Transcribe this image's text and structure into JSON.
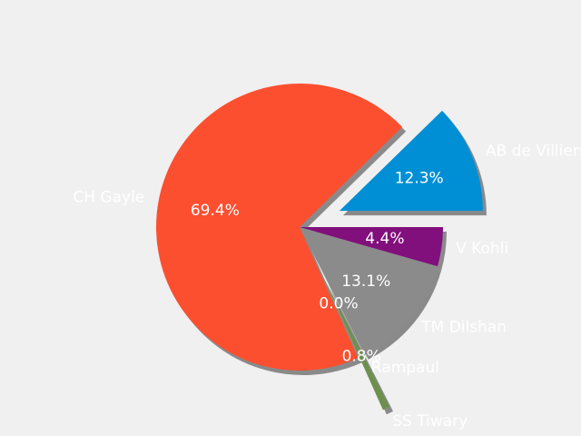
{
  "chart_data": {
    "type": "pie",
    "categories": [
      "AB de Villiers",
      "CH Gayle",
      "SS Tiwary",
      "Rampaul",
      "TM Dilshan",
      "V Kohli"
    ],
    "values": [
      12.3,
      69.4,
      0.8,
      0.0,
      13.1,
      4.4
    ],
    "value_labels": [
      "12.3%",
      "69.4%",
      "0.8%",
      "0.0%",
      "13.1%",
      "4.4%"
    ],
    "colors": [
      "#008fd5",
      "#fc4f30",
      "#6d904f",
      "#e5ae38",
      "#8b8b8b",
      "#810f7c"
    ],
    "explode": [
      0.3,
      0,
      0.4,
      0,
      0,
      0
    ],
    "shadow": true
  }
}
